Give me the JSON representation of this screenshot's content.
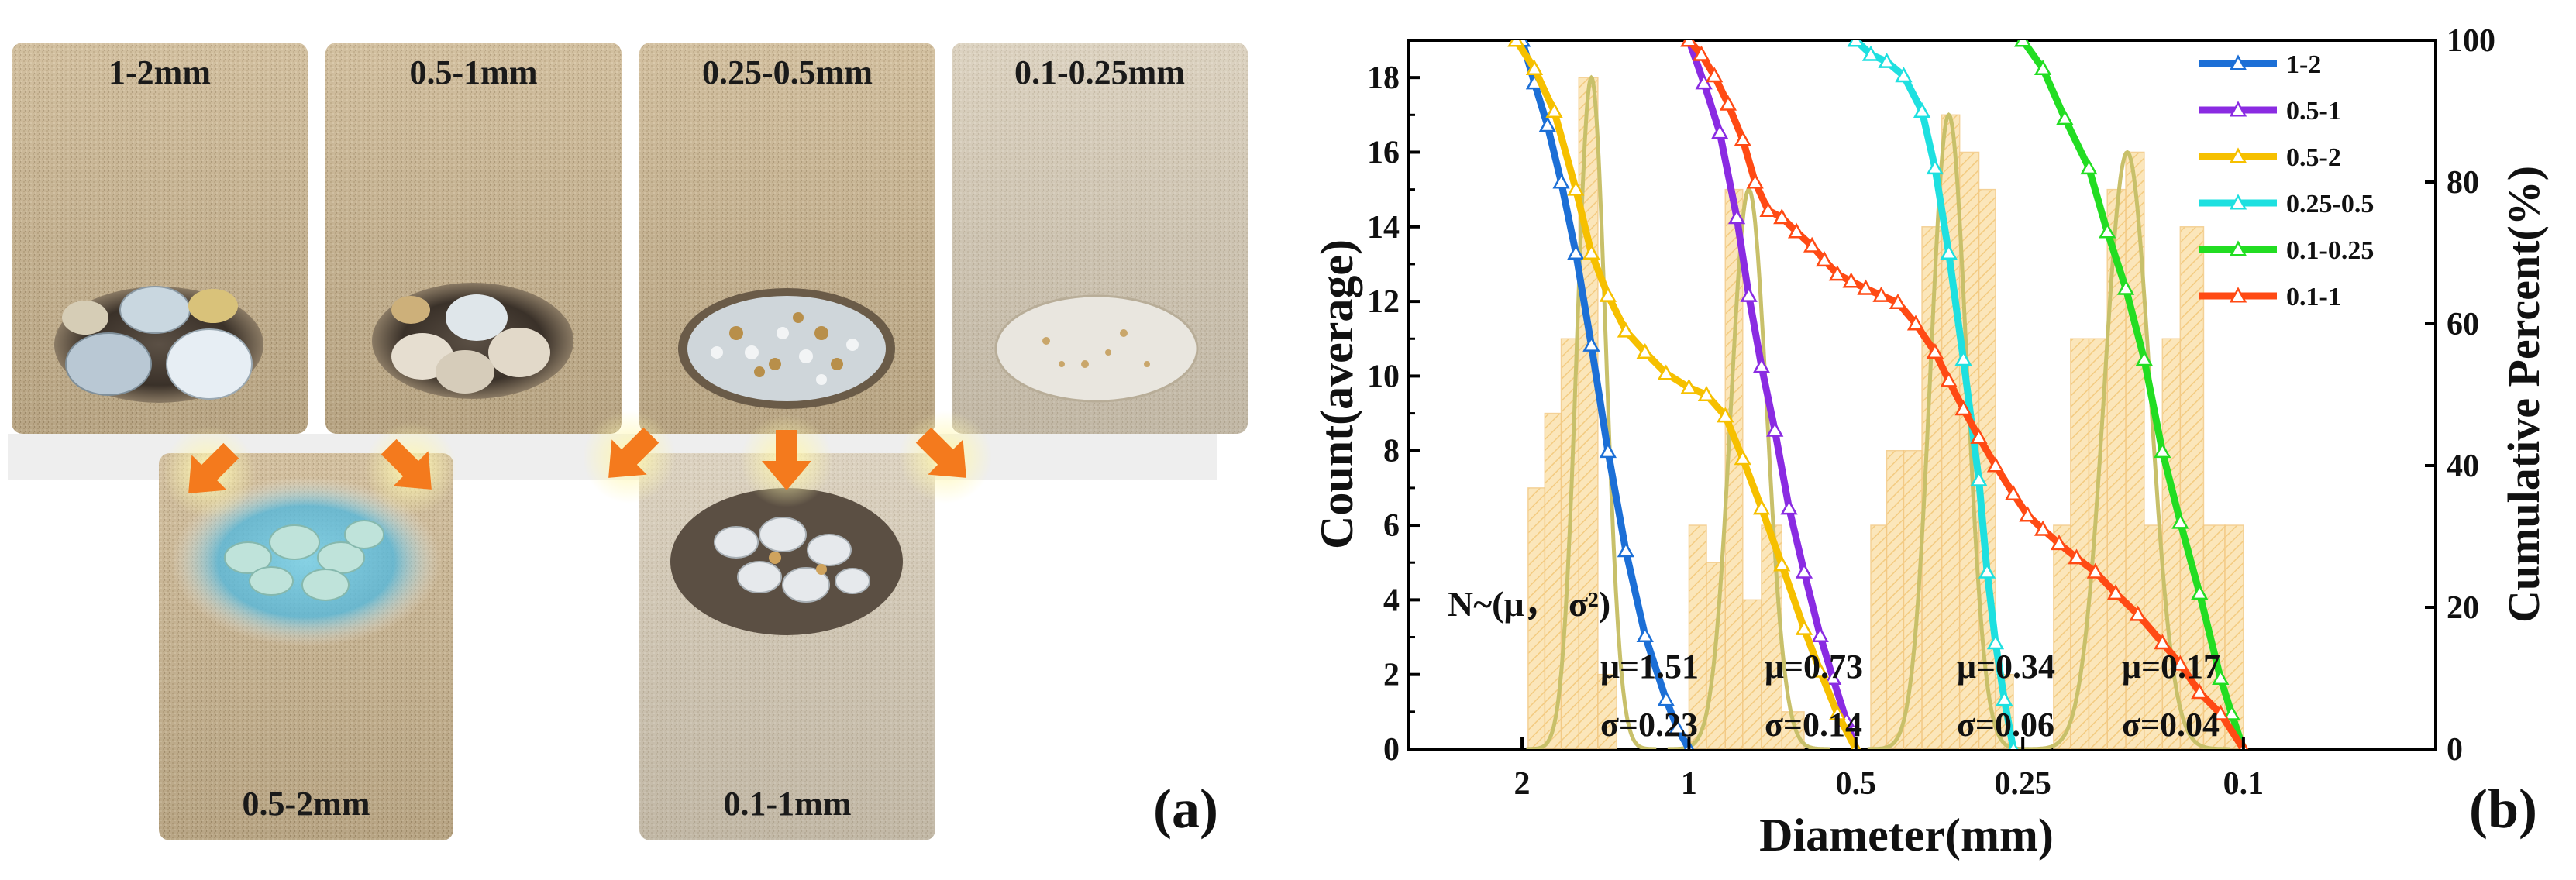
{
  "panel_a": {
    "label": "(a)",
    "photos": [
      {
        "label": "1-2mm"
      },
      {
        "label": "0.5-1mm"
      },
      {
        "label": "0.25-0.5mm"
      },
      {
        "label": "0.1-0.25mm"
      },
      {
        "label": "0.5-2mm"
      },
      {
        "label": "0.1-1mm"
      }
    ],
    "colors": {
      "sand": "#cbb693",
      "arrow": "#f47a1d",
      "glow": "#fff2a0"
    }
  },
  "panel_b": {
    "label": "(b)",
    "dist_label": "N~(μ， σ²)",
    "fits": [
      {
        "mu": "μ=1.51",
        "sigma": "σ=0.23"
      },
      {
        "mu": "μ=0.73",
        "sigma": "σ=0.14"
      },
      {
        "mu": "μ=0.34",
        "sigma": "σ=0.06"
      },
      {
        "mu": "μ=0.17",
        "sigma": "σ=0.04"
      }
    ]
  },
  "chart_data": {
    "type": "bar",
    "xlabel": "Diameter(mm)",
    "ylabel": "Count(average)",
    "y2label": "Cumulative Percent(%)",
    "x_scale": "log, reversed",
    "xlim": [
      3.2,
      0.045
    ],
    "ylim": [
      0,
      19
    ],
    "y2lim": [
      0,
      100
    ],
    "x_ticks": [
      {
        "value": 2,
        "label": "2"
      },
      {
        "value": 1,
        "label": "1"
      },
      {
        "value": 0.5,
        "label": "0.5"
      },
      {
        "value": 0.25,
        "label": "0.25"
      },
      {
        "value": 0.1,
        "label": "0.1"
      }
    ],
    "y_ticks": [
      0,
      2,
      4,
      6,
      8,
      10,
      12,
      14,
      16,
      18
    ],
    "y2_ticks": [
      0,
      20,
      40,
      60,
      80,
      100
    ],
    "histogram": {
      "color": "#f9d38c",
      "groups": [
        {
          "edges": [
            1.95,
            1.82,
            1.7,
            1.58,
            1.46,
            1.35
          ],
          "counts": [
            7,
            9,
            11,
            18,
            2
          ]
        },
        {
          "edges": [
            1.0,
            0.93,
            0.86,
            0.8,
            0.74,
            0.68,
            0.62
          ],
          "counts": [
            6,
            5,
            15,
            4,
            6,
            1
          ]
        },
        {
          "edges": [
            0.47,
            0.44,
            0.41,
            0.38,
            0.35,
            0.325,
            0.3,
            0.28,
            0.26
          ],
          "counts": [
            6,
            8,
            8,
            14,
            17,
            16,
            15,
            2
          ]
        },
        {
          "edges": [
            0.22,
            0.205,
            0.19,
            0.176,
            0.163,
            0.151,
            0.14,
            0.13,
            0.118,
            0.108,
            0.1
          ],
          "counts": [
            6,
            11,
            11,
            15,
            16,
            6,
            11,
            14,
            6,
            6
          ]
        }
      ]
    },
    "normal_fits": {
      "color": "#c8c06a",
      "curves": [
        {
          "peak_x": 1.5,
          "peak_y": 18,
          "width": 0.06
        },
        {
          "peak_x": 0.78,
          "peak_y": 15,
          "width": 0.075
        },
        {
          "peak_x": 0.34,
          "peak_y": 17,
          "width": 0.075
        },
        {
          "peak_x": 0.162,
          "peak_y": 16,
          "width": 0.095
        }
      ]
    },
    "series": [
      {
        "name": "1-2",
        "color": "#1c6fd6",
        "x": [
          2.0,
          1.9,
          1.8,
          1.7,
          1.6,
          1.5,
          1.4,
          1.3,
          1.2,
          1.1,
          1.05,
          1.0
        ],
        "y": [
          100,
          94,
          88,
          80,
          70,
          57,
          42,
          28,
          16,
          7,
          3,
          0
        ]
      },
      {
        "name": "0.5-1",
        "color": "#8a2be2",
        "x": [
          1.0,
          0.94,
          0.88,
          0.82,
          0.78,
          0.74,
          0.7,
          0.66,
          0.62,
          0.58,
          0.55,
          0.52,
          0.5
        ],
        "y": [
          100,
          94,
          87,
          75,
          64,
          54,
          45,
          34,
          25,
          16,
          10,
          4,
          0
        ]
      },
      {
        "name": "0.5-2",
        "color": "#f6c000",
        "x": [
          2.05,
          1.9,
          1.75,
          1.6,
          1.5,
          1.4,
          1.3,
          1.2,
          1.1,
          1.0,
          0.93,
          0.86,
          0.8,
          0.74,
          0.68,
          0.62,
          0.58,
          0.54,
          0.5
        ],
        "y": [
          100,
          96,
          90,
          79,
          70,
          64,
          59,
          56,
          53,
          51,
          50,
          47,
          41,
          34,
          26,
          17,
          11,
          5,
          0
        ]
      },
      {
        "name": "0.25-0.5",
        "color": "#1ee0e0",
        "x": [
          0.5,
          0.47,
          0.44,
          0.41,
          0.38,
          0.36,
          0.34,
          0.32,
          0.3,
          0.29,
          0.28,
          0.27,
          0.26
        ],
        "y": [
          100,
          98,
          97,
          95,
          90,
          82,
          70,
          55,
          38,
          25,
          15,
          7,
          0
        ]
      },
      {
        "name": "0.1-0.25",
        "color": "#22dd22",
        "x": [
          0.25,
          0.23,
          0.21,
          0.19,
          0.176,
          0.163,
          0.151,
          0.14,
          0.13,
          0.12,
          0.11,
          0.105,
          0.1
        ],
        "y": [
          100,
          96,
          89,
          82,
          73,
          65,
          55,
          42,
          32,
          22,
          10,
          5,
          0
        ]
      },
      {
        "name": "0.1-1",
        "color": "#ff4a14",
        "x": [
          1.0,
          0.95,
          0.9,
          0.85,
          0.8,
          0.76,
          0.72,
          0.68,
          0.64,
          0.6,
          0.57,
          0.54,
          0.51,
          0.48,
          0.45,
          0.42,
          0.39,
          0.36,
          0.34,
          0.32,
          0.3,
          0.28,
          0.26,
          0.245,
          0.23,
          0.215,
          0.2,
          0.185,
          0.17,
          0.155,
          0.14,
          0.13,
          0.12,
          0.11,
          0.1
        ],
        "y": [
          100,
          98,
          95,
          91,
          86,
          80,
          76,
          75,
          73,
          71,
          69,
          67,
          66,
          65,
          64,
          63,
          60,
          56,
          52,
          48,
          44,
          40,
          36,
          33,
          31,
          29,
          27,
          25,
          22,
          19,
          15,
          12,
          8,
          5,
          0
        ]
      }
    ]
  }
}
